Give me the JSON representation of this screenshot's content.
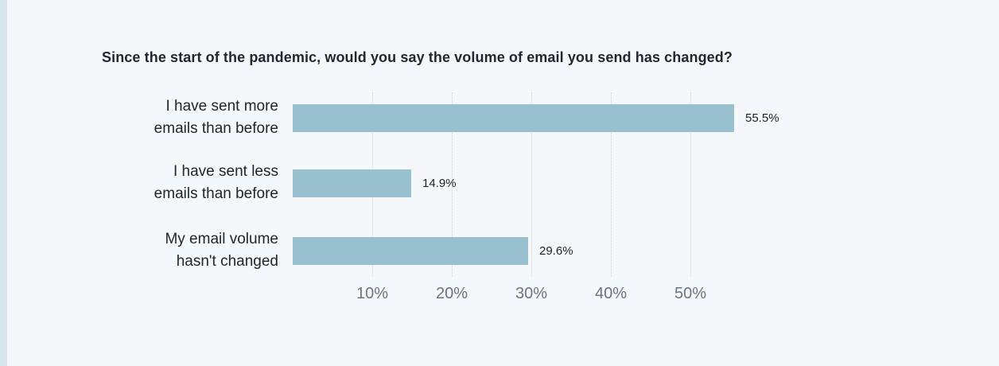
{
  "page": {
    "background_color": "#f4f8fb",
    "accent_stripe_color": "#d6e4eb"
  },
  "chart_data": {
    "type": "bar",
    "orientation": "horizontal",
    "title": "Since the start of the pandemic, would you say the volume of email you send has changed?",
    "categories": [
      "I have sent more emails than before",
      "I have sent less emails than before",
      "My email volume hasn't changed"
    ],
    "values": [
      55.5,
      14.9,
      29.6
    ],
    "rows": [
      {
        "label_lines": [
          "I have sent more",
          "emails than before"
        ],
        "value": 55.5,
        "value_label": "55.5%"
      },
      {
        "label_lines": [
          "I have sent less",
          "emails than before"
        ],
        "value": 14.9,
        "value_label": "14.9%"
      },
      {
        "label_lines": [
          "My email volume",
          "hasn't changed"
        ],
        "value": 29.6,
        "value_label": "29.6%"
      }
    ],
    "x_ticks": [
      "10%",
      "20%",
      "30%",
      "40%",
      "50%"
    ],
    "x_tick_values": [
      10,
      20,
      30,
      40,
      50
    ],
    "xlim": [
      0,
      56
    ],
    "xlabel": "",
    "ylabel": "",
    "legend": "none",
    "grid": "vertical-dotted",
    "bar_color": "#98c0ce",
    "title_color": "#1f2731",
    "category_label_color": "#20262e",
    "value_label_color": "#1a212b",
    "tick_label_color": "#6a747e",
    "gridline_color": "#ccd4da"
  }
}
